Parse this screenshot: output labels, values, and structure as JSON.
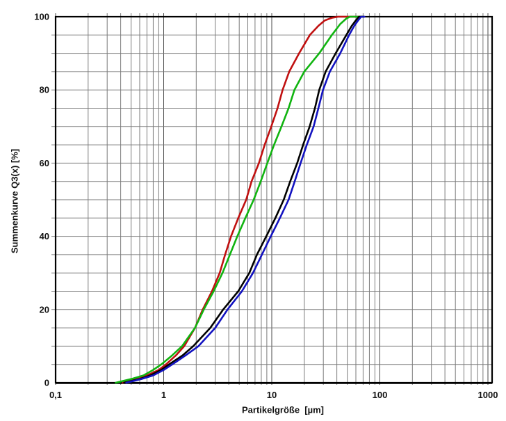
{
  "page": {
    "background": "#ffffff"
  },
  "chart_data": {
    "type": "line",
    "title": "",
    "xlabel": "Partikelgröße  [µm]",
    "ylabel": "Summenkurve Q3(x) [%]",
    "x_scale": "log",
    "xlim": [
      0.1,
      1000
    ],
    "ylim": [
      0,
      100
    ],
    "grid": true,
    "legend_position": "none",
    "grid_minor_color": "#7a7a7a",
    "grid_major_color": "#4a4a4a",
    "frame_color": "#000000",
    "y_minor_step": 5,
    "x_ticks": [
      {
        "value": 0.1,
        "label": "0,1"
      },
      {
        "value": 1,
        "label": "1"
      },
      {
        "value": 10,
        "label": "10"
      },
      {
        "value": 100,
        "label": "100"
      },
      {
        "value": 1000,
        "label": "1000"
      }
    ],
    "y_ticks": [
      {
        "value": 0,
        "label": "0"
      },
      {
        "value": 20,
        "label": "20"
      },
      {
        "value": 40,
        "label": "40"
      },
      {
        "value": 60,
        "label": "60"
      },
      {
        "value": 80,
        "label": "80"
      },
      {
        "value": 100,
        "label": "100"
      }
    ],
    "series": [
      {
        "name": "curve-red",
        "color": "#c01010",
        "points": [
          [
            0.42,
            0
          ],
          [
            0.55,
            1
          ],
          [
            0.7,
            2
          ],
          [
            0.9,
            3.5
          ],
          [
            1.05,
            5
          ],
          [
            1.3,
            7.5
          ],
          [
            1.55,
            10
          ],
          [
            1.95,
            15
          ],
          [
            2.3,
            20
          ],
          [
            2.8,
            25
          ],
          [
            3.3,
            30
          ],
          [
            3.7,
            35
          ],
          [
            4.2,
            40
          ],
          [
            4.9,
            45
          ],
          [
            5.8,
            50
          ],
          [
            6.5,
            55
          ],
          [
            7.6,
            60
          ],
          [
            8.6,
            65
          ],
          [
            9.9,
            70
          ],
          [
            11.3,
            75
          ],
          [
            12.6,
            80
          ],
          [
            14.5,
            85
          ],
          [
            17.9,
            90
          ],
          [
            22.5,
            95
          ],
          [
            27,
            97.5
          ],
          [
            31,
            99
          ],
          [
            36,
            99.7
          ],
          [
            41,
            100
          ],
          [
            70,
            100
          ]
        ]
      },
      {
        "name": "curve-green",
        "color": "#10b410",
        "points": [
          [
            0.36,
            0
          ],
          [
            0.5,
            1
          ],
          [
            0.65,
            2
          ],
          [
            0.8,
            3.5
          ],
          [
            0.95,
            5
          ],
          [
            1.2,
            7.5
          ],
          [
            1.48,
            10
          ],
          [
            1.95,
            15
          ],
          [
            2.35,
            20
          ],
          [
            2.9,
            25
          ],
          [
            3.5,
            30
          ],
          [
            4.1,
            35
          ],
          [
            4.8,
            40
          ],
          [
            5.7,
            45
          ],
          [
            6.8,
            50
          ],
          [
            7.9,
            55
          ],
          [
            9.1,
            60
          ],
          [
            10.5,
            65
          ],
          [
            12.3,
            70
          ],
          [
            14.3,
            75
          ],
          [
            16.2,
            80
          ],
          [
            20,
            85
          ],
          [
            27.5,
            90
          ],
          [
            36,
            95
          ],
          [
            43,
            98
          ],
          [
            49,
            99.5
          ],
          [
            53,
            100
          ],
          [
            70,
            100
          ]
        ]
      },
      {
        "name": "curve-black",
        "color": "#000000",
        "points": [
          [
            0.43,
            0
          ],
          [
            0.6,
            1
          ],
          [
            0.75,
            2
          ],
          [
            0.95,
            3.5
          ],
          [
            1.12,
            5
          ],
          [
            1.5,
            7.5
          ],
          [
            1.88,
            10
          ],
          [
            2.7,
            15
          ],
          [
            3.55,
            20
          ],
          [
            4.9,
            25
          ],
          [
            6.2,
            30
          ],
          [
            7.3,
            35
          ],
          [
            8.9,
            40
          ],
          [
            10.8,
            45
          ],
          [
            12.9,
            50
          ],
          [
            14.8,
            55
          ],
          [
            17.2,
            60
          ],
          [
            19.5,
            65
          ],
          [
            22.4,
            70
          ],
          [
            25.1,
            75
          ],
          [
            27.5,
            80
          ],
          [
            31.5,
            85
          ],
          [
            39,
            90
          ],
          [
            49,
            95
          ],
          [
            55,
            97.5
          ],
          [
            60,
            99
          ],
          [
            64,
            100
          ],
          [
            71,
            100
          ]
        ]
      },
      {
        "name": "curve-blue",
        "color": "#1212c0",
        "points": [
          [
            0.45,
            0
          ],
          [
            0.62,
            1
          ],
          [
            0.8,
            2
          ],
          [
            1.0,
            3.5
          ],
          [
            1.2,
            5
          ],
          [
            1.6,
            7.5
          ],
          [
            2.1,
            10
          ],
          [
            3.0,
            15
          ],
          [
            3.9,
            20
          ],
          [
            5.3,
            25
          ],
          [
            6.7,
            30
          ],
          [
            8.1,
            35
          ],
          [
            9.8,
            40
          ],
          [
            11.9,
            45
          ],
          [
            14.3,
            50
          ],
          [
            16.3,
            55
          ],
          [
            18.5,
            60
          ],
          [
            21.1,
            65
          ],
          [
            24.4,
            70
          ],
          [
            27.0,
            75
          ],
          [
            29.8,
            80
          ],
          [
            34.5,
            85
          ],
          [
            43,
            90
          ],
          [
            52,
            95
          ],
          [
            58,
            97.5
          ],
          [
            63,
            99
          ],
          [
            67,
            100
          ],
          [
            72,
            100
          ]
        ]
      }
    ]
  }
}
